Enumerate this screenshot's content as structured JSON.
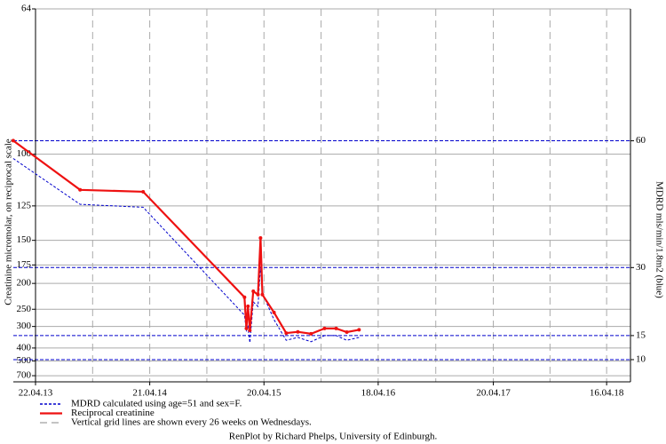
{
  "chart_data": {
    "type": "line",
    "yscale": "reciprocal",
    "y_label": "Creatinine micromolar, on reciprocal scale",
    "y2_label": "MDRD mls/min/1.8m2 (blue)",
    "x": [
      "2013-02-10",
      "2013-09-11",
      "2014-03-31",
      "2015-02-17",
      "2015-02-23",
      "2015-02-28",
      "2015-03-06",
      "2015-03-17",
      "2015-04-01",
      "2015-04-09",
      "2015-04-15",
      "2015-05-22",
      "2015-06-30",
      "2015-08-06",
      "2015-09-17",
      "2015-10-30",
      "2015-12-06",
      "2016-01-09",
      "2016-02-17"
    ],
    "series": [
      {
        "name": "MDRD calculated using age=51 and sex=F.",
        "color": "#0000cc",
        "axis": "y2",
        "dashed": true,
        "values": [
          55.7,
          44.7,
          44.0,
          19.4,
          16.1,
          16.9,
          13.5,
          22.3,
          21.3,
          30.2,
          24.2,
          18.4,
          14.0,
          14.6,
          13.7,
          15.0,
          15.0,
          14.0,
          14.6
        ]
      },
      {
        "name": "Reciprocal creatinine",
        "color": "#ee1111",
        "markers": true,
        "values": [
          95,
          116,
          117,
          224,
          307,
          243,
          314,
          213,
          219,
          148,
          219,
          258,
          325,
          320,
          328,
          307,
          307,
          321,
          312
        ]
      }
    ],
    "legend_note": "Vertical grid lines are shown every 26 weeks on Wednesdays.",
    "footer": "RenPlot by Richard Phelps, University of Edinburgh.",
    "xlim": [
      "2013-04-22",
      "2018-07-01"
    ],
    "xticks": [
      {
        "value": "2013-04-22",
        "label": "22.04.13"
      },
      {
        "value": "2014-04-21",
        "label": "21.04.14"
      },
      {
        "value": "2015-04-20",
        "label": "20.04.15"
      },
      {
        "value": "2016-04-18",
        "label": "18.04.16"
      },
      {
        "value": "2017-04-20",
        "label": "20.04.17"
      },
      {
        "value": "2018-04-16",
        "label": "16.04.18"
      }
    ],
    "ylim": [
      64,
      840
    ],
    "yticks": [
      64,
      100,
      125,
      150,
      175,
      200,
      250,
      300,
      400,
      500,
      700
    ],
    "y2lim": [
      93,
      5.6
    ],
    "y2ticks": [
      60,
      30,
      15,
      10
    ],
    "grid": true
  }
}
